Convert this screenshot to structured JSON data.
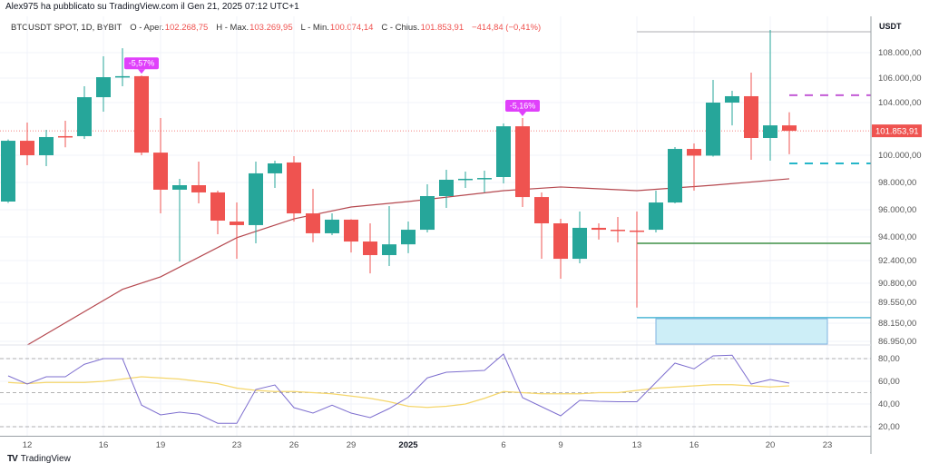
{
  "header": {
    "publisher_line": "Alex975 ha pubblicato su TradingView.com il Gen 21, 2025 07:12 UTC+1"
  },
  "legend": {
    "symbol": "BTCUSDT SPOT, 1D, BYBIT",
    "open_label": "O - Aper.",
    "open": "102.268,75",
    "high_label": "H - Max.",
    "high": "103.269,95",
    "low_label": "L - Min.",
    "low": "100.074,14",
    "close_label": "C - Chius.",
    "close": "101.853,91",
    "change": "−414,84 (−0,41%)"
  },
  "colors": {
    "up": "#26a69a",
    "down": "#ef5350",
    "ma": "#b5484f",
    "rsi": "#7e6fcf",
    "rsi_ma": "#f5d66b",
    "badge": "#e040fb"
  },
  "price_axis": {
    "currency": "USDT",
    "ticks": [
      "108.000,00",
      "106.000,00",
      "104.000,00",
      "100.000,00",
      "98.000,00",
      "96.000,00",
      "94.000,00",
      "92.400,00",
      "90.800,00",
      "89.550,00",
      "88.150,00",
      "86.950,00"
    ],
    "current_price_label": "101.853,91",
    "current_price": 101853.91
  },
  "rsi_axis": {
    "ticks": [
      "80,00",
      "60,00",
      "40,00",
      "20,00"
    ]
  },
  "time_axis": {
    "labels": [
      {
        "text": "12",
        "index": 1
      },
      {
        "text": "16",
        "index": 5
      },
      {
        "text": "19",
        "index": 8
      },
      {
        "text": "23",
        "index": 12
      },
      {
        "text": "26",
        "index": 15
      },
      {
        "text": "29",
        "index": 18
      },
      {
        "text": "2025",
        "index": 21,
        "bold": true
      },
      {
        "text": "6",
        "index": 26
      },
      {
        "text": "9",
        "index": 29
      },
      {
        "text": "13",
        "index": 33
      },
      {
        "text": "16",
        "index": 36
      },
      {
        "text": "20",
        "index": 40
      },
      {
        "text": "23",
        "index": 43
      }
    ]
  },
  "footer": {
    "brand": "TradingView"
  },
  "chart_data": {
    "type": "candlestick",
    "title": "BTCUSDT SPOT, 1D, BYBIT",
    "ohlc": [
      [
        96600,
        101200,
        96500,
        101100
      ],
      [
        101100,
        102480,
        99270,
        100000
      ],
      [
        100000,
        101930,
        99200,
        101380
      ],
      [
        101450,
        102620,
        100600,
        101400
      ],
      [
        101450,
        105330,
        101240,
        104440
      ],
      [
        104440,
        107710,
        103310,
        106070
      ],
      [
        106100,
        108350,
        105330,
        106150
      ],
      [
        106150,
        106200,
        100000,
        100200
      ],
      [
        100200,
        102830,
        95730,
        97470
      ],
      [
        97470,
        98270,
        92340,
        97800
      ],
      [
        97800,
        99530,
        96470,
        97270
      ],
      [
        97270,
        97400,
        94200,
        95200
      ],
      [
        95130,
        96530,
        92520,
        94870
      ],
      [
        94870,
        99530,
        93570,
        98670
      ],
      [
        98670,
        99600,
        97600,
        99400
      ],
      [
        99470,
        99930,
        95130,
        95730
      ],
      [
        95730,
        97530,
        93650,
        94270
      ],
      [
        94270,
        95730,
        94130,
        95270
      ],
      [
        95270,
        95300,
        92950,
        93690
      ],
      [
        93690,
        95000,
        91500,
        92770
      ],
      [
        92770,
        96270,
        92020,
        93500
      ],
      [
        93500,
        95130,
        92900,
        94530
      ],
      [
        94530,
        97870,
        94330,
        97000
      ],
      [
        97000,
        98930,
        96130,
        98200
      ],
      [
        98200,
        98800,
        97600,
        98270
      ],
      [
        98270,
        98870,
        97270,
        98330
      ],
      [
        98400,
        102410,
        97930,
        102200
      ],
      [
        102200,
        102830,
        96200,
        96930
      ],
      [
        96930,
        97270,
        92520,
        95000
      ],
      [
        95000,
        95330,
        91120,
        92520
      ],
      [
        92520,
        95870,
        92210,
        94670
      ],
      [
        94670,
        95000,
        93820,
        94530
      ],
      [
        94530,
        95470,
        93630,
        94470
      ],
      [
        94470,
        95870,
        89200,
        94400
      ],
      [
        94530,
        97400,
        94330,
        96530
      ],
      [
        96530,
        100620,
        96470,
        100480
      ],
      [
        100480,
        100900,
        97400,
        99970
      ],
      [
        99970,
        105850,
        99900,
        104000
      ],
      [
        104000,
        104960,
        102270,
        104520
      ],
      [
        104520,
        106430,
        99670,
        101310
      ],
      [
        101310,
        109790,
        99600,
        102270
      ],
      [
        102268.75,
        103269.95,
        100074.14,
        101853.91
      ]
    ],
    "moving_average": [
      [
        1,
        86700
      ],
      [
        6,
        90400
      ],
      [
        8,
        91250
      ],
      [
        12,
        93950
      ],
      [
        15,
        95330
      ],
      [
        18,
        96200
      ],
      [
        21,
        96600
      ],
      [
        26,
        97400
      ],
      [
        29,
        97670
      ],
      [
        33,
        97400
      ],
      [
        37,
        97800
      ],
      [
        41,
        98270
      ]
    ],
    "badges": [
      {
        "index": 7,
        "text": "-5,57%"
      },
      {
        "index": 27,
        "text": "-5,16%"
      }
    ],
    "drawings": [
      {
        "kind": "line",
        "price": 109640,
        "from": 33,
        "color": "#c8c8cc",
        "dash": false
      },
      {
        "kind": "line",
        "price": 104600,
        "from": 41,
        "color": "#c35bd6",
        "dash": true
      },
      {
        "kind": "line",
        "price": 99400,
        "from": 41,
        "color": "#26b6c9",
        "dash": true
      },
      {
        "kind": "line",
        "price": 93570,
        "from": 33,
        "color": "#3f8f46",
        "dash": false
      },
      {
        "kind": "line",
        "price": 88520,
        "from": 33,
        "color": "#4fb8d6",
        "dash": false
      },
      {
        "kind": "rect",
        "top": 88450,
        "bottom": 86700,
        "from": 34,
        "to": 43,
        "color": "#cdeef7",
        "stroke": "#7fb3e0"
      }
    ],
    "rsi": [
      64.8,
      57.6,
      64,
      64,
      75,
      80,
      80,
      39,
      30.4,
      32.8,
      31,
      23,
      23,
      52.8,
      56.8,
      36.8,
      32,
      39,
      32,
      28,
      36,
      46,
      63,
      68,
      68.8,
      69.6,
      84,
      45.6,
      37.6,
      29.6,
      43.2,
      42.4,
      42,
      42,
      59,
      76,
      71,
      82.4,
      83,
      57.6,
      61.6,
      58.4
    ],
    "rsi_ma": [
      59,
      58,
      59,
      59,
      59,
      60,
      62,
      64,
      63,
      62,
      60,
      58,
      54,
      52,
      51,
      51,
      50,
      49,
      47,
      45,
      42,
      38,
      37,
      38,
      40,
      45,
      51,
      50,
      49,
      49,
      49,
      50,
      50,
      52,
      54,
      55,
      56,
      57,
      57,
      56,
      55,
      56
    ],
    "rsi_bands": [
      80,
      50,
      20
    ]
  }
}
